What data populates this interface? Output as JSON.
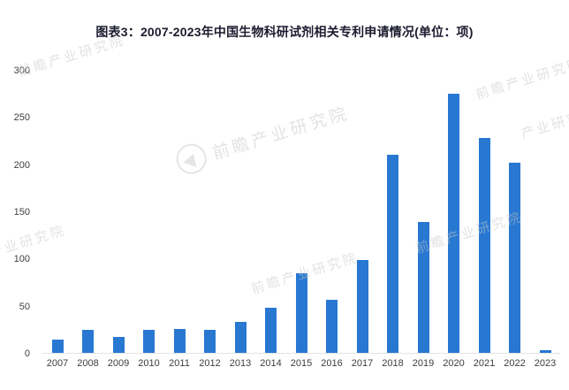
{
  "title": "图表3：2007-2023年中国生物科研试剂相关专利申请情况(单位：项)",
  "watermark": {
    "text": "前瞻产业研究院",
    "partial_text": "产业研究院"
  },
  "chart_data": {
    "type": "bar",
    "title": "图表3：2007-2023年中国生物科研试剂相关专利申请情况(单位：项)",
    "categories": [
      "2007",
      "2008",
      "2009",
      "2010",
      "2011",
      "2012",
      "2013",
      "2014",
      "2015",
      "2016",
      "2017",
      "2018",
      "2019",
      "2020",
      "2021",
      "2022",
      "2023"
    ],
    "values": [
      14,
      24,
      17,
      24,
      25,
      24,
      33,
      48,
      84,
      56,
      98,
      210,
      139,
      275,
      228,
      202,
      3
    ],
    "xlabel": "",
    "ylabel": "",
    "ylim": [
      0,
      300
    ],
    "yticks": [
      0,
      50,
      100,
      150,
      200,
      250,
      300
    ],
    "grid": false,
    "legend": "none",
    "bar_color": "#2878D2"
  }
}
